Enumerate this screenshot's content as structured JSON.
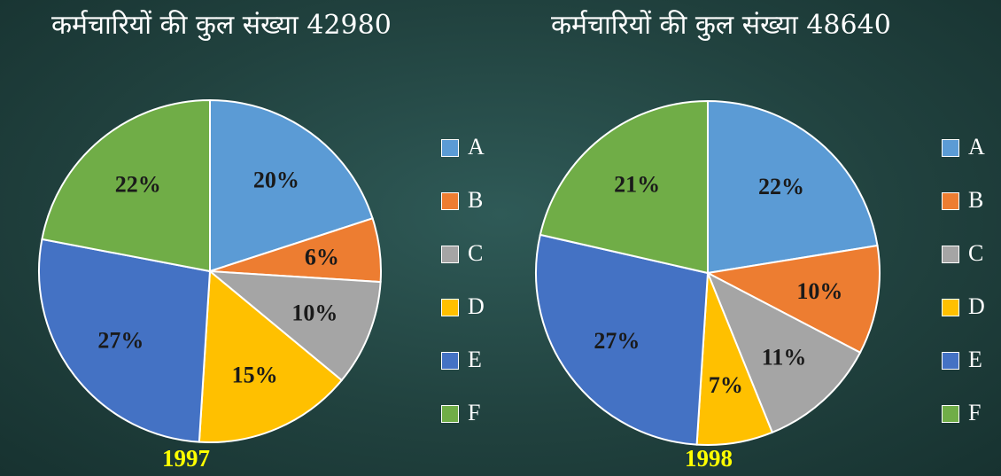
{
  "chart_data": [
    {
      "type": "pie",
      "title": "कर्मचारियों की कुल संख्या 42980",
      "year": "1997",
      "categories": [
        "A",
        "B",
        "C",
        "D",
        "E",
        "F"
      ],
      "values": [
        20,
        6,
        10,
        15,
        27,
        22
      ],
      "value_labels": [
        "20%",
        "6%",
        "10%",
        "15%",
        "27%",
        "22%"
      ],
      "legend_position": "right"
    },
    {
      "type": "pie",
      "title": "कर्मचारियों की कुल संख्या 48640",
      "year": "1998",
      "categories": [
        "A",
        "B",
        "C",
        "D",
        "E",
        "F"
      ],
      "values": [
        22,
        10,
        11,
        7,
        27,
        21
      ],
      "value_labels": [
        "22%",
        "10%",
        "11%",
        "7%",
        "27%",
        "21%"
      ],
      "legend_position": "right"
    }
  ],
  "colors": {
    "A": "#5b9bd5",
    "B": "#ed7d31",
    "C": "#a5a5a5",
    "D": "#ffc000",
    "E": "#4472c4",
    "F": "#70ad47",
    "title_text": "#ffffff",
    "year_text": "#ffff00"
  }
}
